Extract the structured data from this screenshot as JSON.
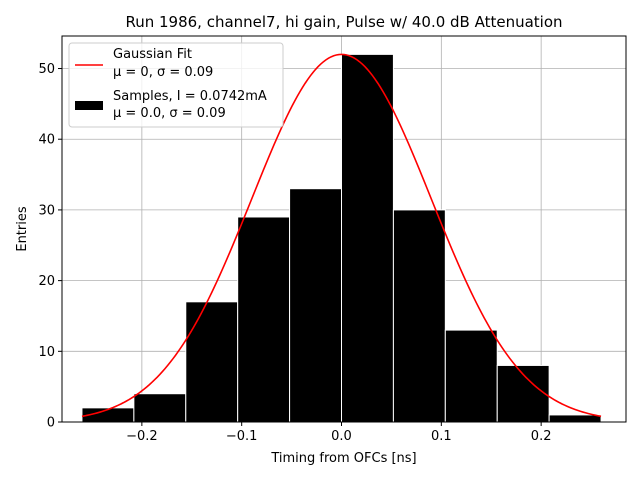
{
  "chart_data": {
    "type": "bar",
    "title": "Run 1986, channel7, hi gain, Pulse w/ 40.0 dB Attenuation",
    "xlabel": "Timing from OFCs [ns]",
    "ylabel": "Entries",
    "xlim": [
      -0.28,
      0.285
    ],
    "ylim": [
      0,
      54.6
    ],
    "xticks": [
      -0.2,
      -0.1,
      0.0,
      0.1,
      0.2
    ],
    "xtick_labels": [
      "−0.2",
      "−0.1",
      "0.0",
      "0.1",
      "0.2"
    ],
    "yticks": [
      0,
      10,
      20,
      30,
      40,
      50
    ],
    "ytick_labels": [
      "0",
      "10",
      "20",
      "30",
      "40",
      "50"
    ],
    "grid": true,
    "legend_position": "top-left",
    "histogram": {
      "name": "Samples, I = 0.0742mA",
      "name_line2": "μ = 0.0, σ = 0.09",
      "color": "#000000",
      "edge_color": "#ffffff",
      "bin_edges": [
        -0.26,
        -0.208,
        -0.156,
        -0.104,
        -0.052,
        0.0,
        0.052,
        0.104,
        0.156,
        0.208,
        0.26
      ],
      "counts": [
        2,
        4,
        17,
        29,
        33,
        52,
        30,
        13,
        8,
        1
      ]
    },
    "fit": {
      "name": "Gaussian Fit",
      "name_line2": "μ = 0, σ = 0.09",
      "color": "#ff0000",
      "mu": 0.0,
      "sigma": 0.09,
      "peak": 52.0,
      "x_range": [
        -0.26,
        0.26
      ]
    }
  }
}
